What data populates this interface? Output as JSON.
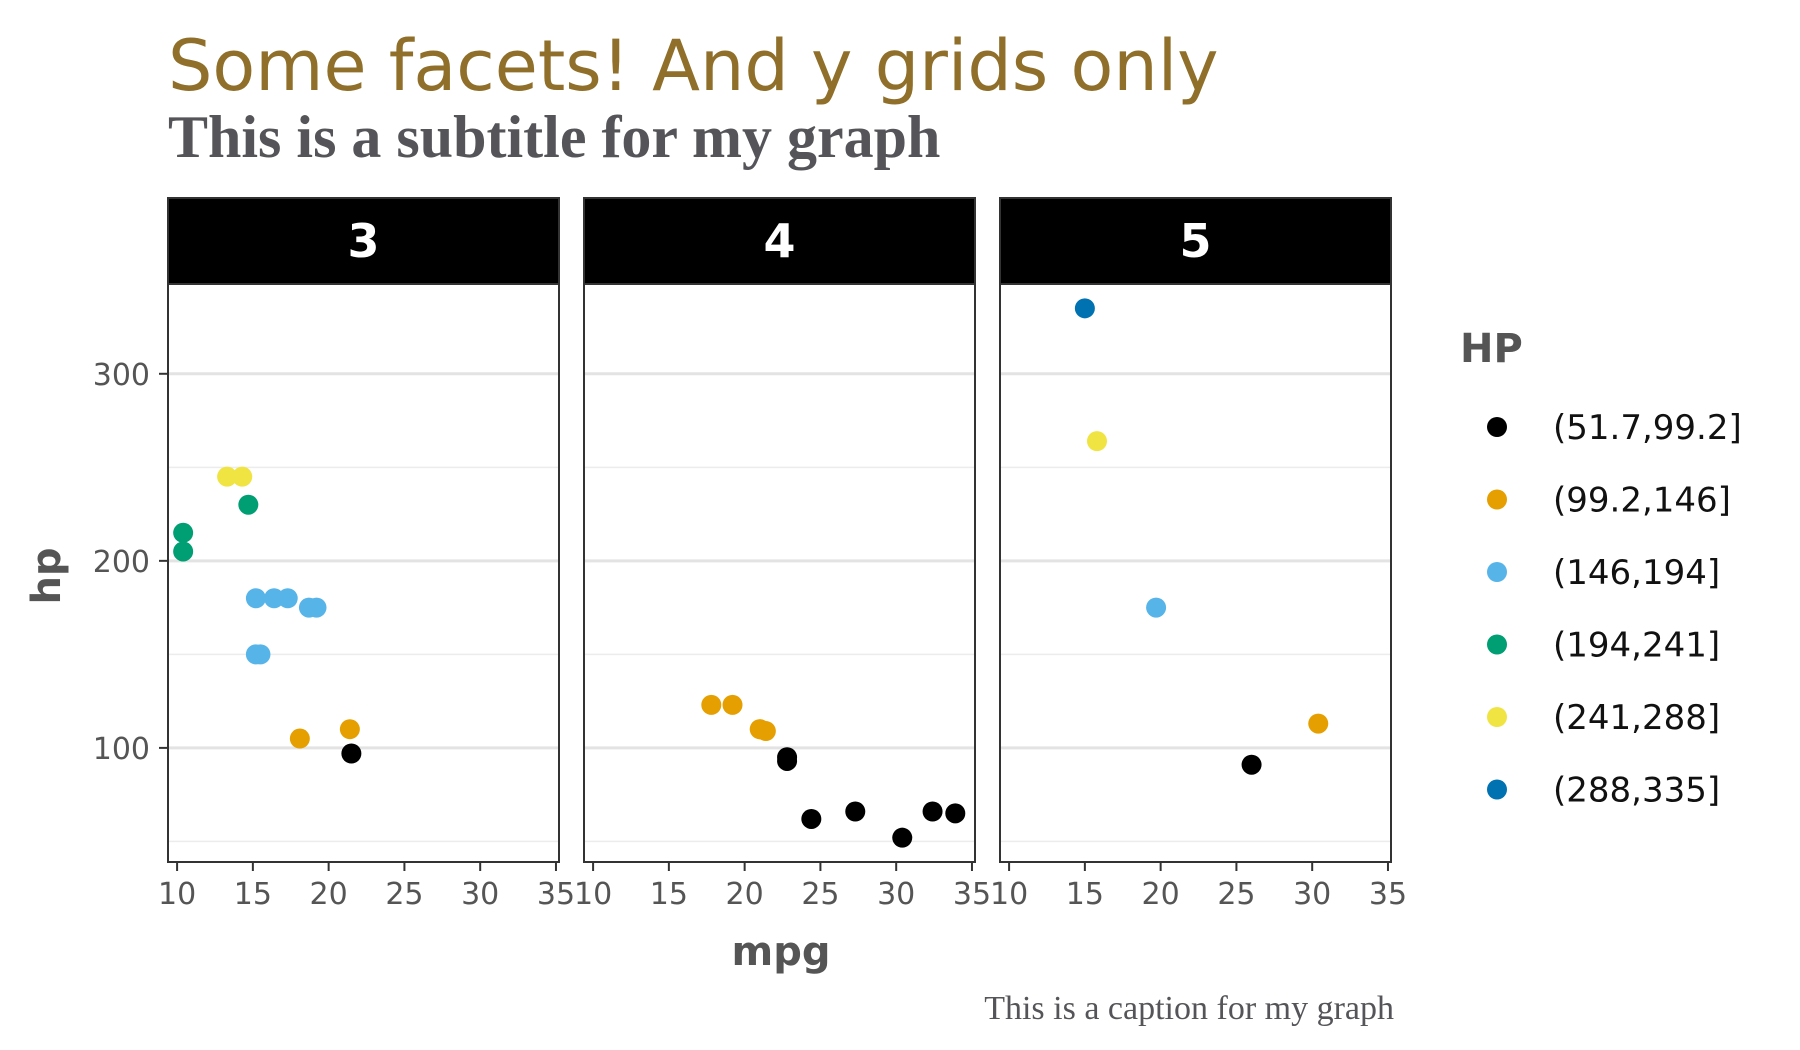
{
  "chart_data": {
    "type": "scatter",
    "title": "Some facets! And y grids only",
    "subtitle": "This is a subtitle for my graph",
    "caption": "This is a caption for my graph",
    "xlabel": "mpg",
    "ylabel": "hp",
    "xlim": [
      9.4,
      35.2
    ],
    "ylim": [
      39,
      348
    ],
    "x_ticks": [
      10,
      15,
      20,
      25,
      30,
      35
    ],
    "y_ticks": [
      100,
      200,
      300
    ],
    "grid": "y-only",
    "legend": {
      "title": "HP",
      "position": "right",
      "entries": [
        {
          "label": "(51.7,99.2]",
          "color": "#000000"
        },
        {
          "label": "(99.2,146]",
          "color": "#E69F00"
        },
        {
          "label": "(146,194]",
          "color": "#56B4E9"
        },
        {
          "label": "(194,241]",
          "color": "#009E73"
        },
        {
          "label": "(241,288]",
          "color": "#F0E442"
        },
        {
          "label": "(288,335]",
          "color": "#0072B2"
        }
      ]
    },
    "facets": [
      {
        "label": "3",
        "points": [
          {
            "mpg": 21.4,
            "hp": 110,
            "group": 1
          },
          {
            "mpg": 18.7,
            "hp": 175,
            "group": 2
          },
          {
            "mpg": 18.1,
            "hp": 105,
            "group": 1
          },
          {
            "mpg": 14.3,
            "hp": 245,
            "group": 4
          },
          {
            "mpg": 16.4,
            "hp": 180,
            "group": 2
          },
          {
            "mpg": 17.3,
            "hp": 180,
            "group": 2
          },
          {
            "mpg": 15.2,
            "hp": 180,
            "group": 2
          },
          {
            "mpg": 10.4,
            "hp": 205,
            "group": 3
          },
          {
            "mpg": 10.4,
            "hp": 215,
            "group": 3
          },
          {
            "mpg": 14.7,
            "hp": 230,
            "group": 3
          },
          {
            "mpg": 21.5,
            "hp": 97,
            "group": 0
          },
          {
            "mpg": 15.5,
            "hp": 150,
            "group": 2
          },
          {
            "mpg": 15.2,
            "hp": 150,
            "group": 2
          },
          {
            "mpg": 13.3,
            "hp": 245,
            "group": 4
          },
          {
            "mpg": 19.2,
            "hp": 175,
            "group": 2
          }
        ]
      },
      {
        "label": "4",
        "points": [
          {
            "mpg": 21.0,
            "hp": 110,
            "group": 1
          },
          {
            "mpg": 21.0,
            "hp": 110,
            "group": 1
          },
          {
            "mpg": 22.8,
            "hp": 93,
            "group": 0
          },
          {
            "mpg": 24.4,
            "hp": 62,
            "group": 0
          },
          {
            "mpg": 22.8,
            "hp": 95,
            "group": 0
          },
          {
            "mpg": 19.2,
            "hp": 123,
            "group": 1
          },
          {
            "mpg": 17.8,
            "hp": 123,
            "group": 1
          },
          {
            "mpg": 32.4,
            "hp": 66,
            "group": 0
          },
          {
            "mpg": 30.4,
            "hp": 52,
            "group": 0
          },
          {
            "mpg": 33.9,
            "hp": 65,
            "group": 0
          },
          {
            "mpg": 27.3,
            "hp": 66,
            "group": 0
          },
          {
            "mpg": 21.4,
            "hp": 109,
            "group": 1
          }
        ]
      },
      {
        "label": "5",
        "points": [
          {
            "mpg": 26.0,
            "hp": 91,
            "group": 0
          },
          {
            "mpg": 30.4,
            "hp": 113,
            "group": 1
          },
          {
            "mpg": 15.8,
            "hp": 264,
            "group": 4
          },
          {
            "mpg": 19.7,
            "hp": 175,
            "group": 2
          },
          {
            "mpg": 15.0,
            "hp": 335,
            "group": 5
          }
        ]
      }
    ]
  }
}
